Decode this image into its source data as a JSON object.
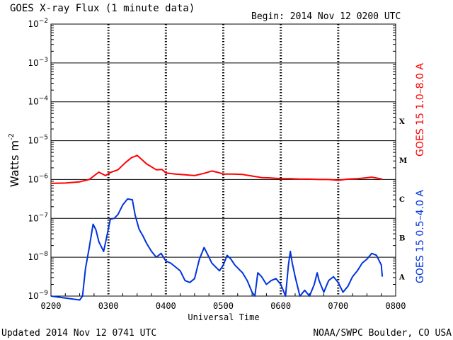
{
  "header": {
    "title": "GOES X-ray Flux (1 minute data)",
    "begin": "Begin: 2014 Nov 12 0200 UTC"
  },
  "footer": {
    "updated": "Updated 2014 Nov 12 0741 UTC",
    "credit": "NOAA/SWPC Boulder, CO USA"
  },
  "chart_data": {
    "type": "line",
    "title": "GOES X-ray Flux (1 minute data)",
    "xlabel": "Universal Time",
    "ylabel": "Watts m",
    "ylabel_sup": "-2",
    "xlim": [
      "0200",
      "0800"
    ],
    "ylim_exponent": [
      -9,
      -2
    ],
    "yscale": "log",
    "grid": true,
    "x_tick_labels": [
      "0200",
      "0300",
      "0400",
      "0500",
      "0600",
      "0700",
      "0800"
    ],
    "y_tick_exponents": [
      -9,
      -8,
      -7,
      -6,
      -5,
      -4,
      -3,
      -2
    ],
    "flare_classes": [
      {
        "label": "A",
        "exponent": -8
      },
      {
        "label": "B",
        "exponent": -7
      },
      {
        "label": "C",
        "exponent": -6
      },
      {
        "label": "M",
        "exponent": -5
      },
      {
        "label": "X",
        "exponent": -4
      }
    ],
    "series": [
      {
        "name": "GOES 15 1.0–8.0 A",
        "color": "#ff0000",
        "x": [
          "0200",
          "0215",
          "0230",
          "0240",
          "0250",
          "0257",
          "0302",
          "0310",
          "0318",
          "0324",
          "0330",
          "0340",
          "0350",
          "0356",
          "0400",
          "0410",
          "0420",
          "0430",
          "0440",
          "0448",
          "0455",
          "0500",
          "0510",
          "0520",
          "0530",
          "0540",
          "0550",
          "0600",
          "0610",
          "0620",
          "0630",
          "0640",
          "0650",
          "0700",
          "0710",
          "0720",
          "0735",
          "0746"
        ],
        "log10_flux": [
          -6.1,
          -6.09,
          -6.06,
          -6.0,
          -5.81,
          -5.9,
          -5.82,
          -5.75,
          -5.56,
          -5.44,
          -5.38,
          -5.6,
          -5.75,
          -5.74,
          -5.83,
          -5.86,
          -5.88,
          -5.9,
          -5.84,
          -5.78,
          -5.82,
          -5.86,
          -5.86,
          -5.87,
          -5.91,
          -5.95,
          -5.96,
          -5.98,
          -5.98,
          -5.99,
          -5.99,
          -6.0,
          -6.0,
          -6.02,
          -5.99,
          -5.98,
          -5.94,
          -5.99
        ]
      },
      {
        "name": "GOES 15 0.5–4.0 A",
        "color": "#0033dd",
        "x": [
          "0200",
          "0215",
          "0230",
          "0233",
          "0236",
          "0240",
          "0244",
          "0247",
          "0250",
          "0255",
          "0258",
          "0302",
          "0306",
          "0310",
          "0315",
          "0320",
          "0325",
          "0328",
          "0332",
          "0336",
          "0340",
          "0345",
          "0350",
          "0355",
          "0400",
          "0405",
          "0410",
          "0415",
          "0420",
          "0425",
          "0430",
          "0435",
          "0440",
          "0444",
          "0448",
          "0452",
          "0456",
          "0500",
          "0504",
          "0508",
          "0512",
          "0516",
          "0520",
          "0525",
          "0530",
          "0533",
          "0536",
          "0540",
          "0545",
          "0550",
          "0555",
          "0600",
          "0605",
          "0608",
          "0610",
          "0612",
          "0615",
          "0620",
          "0625",
          "0630",
          "0635",
          "0638",
          "0640",
          "0645",
          "0650",
          "0655",
          "0700",
          "0705",
          "0710",
          "0715",
          "0720",
          "0725",
          "0730",
          "0735",
          "0740",
          "0745",
          "0746"
        ],
        "log10_flux": [
          -9.0,
          -9.05,
          -9.1,
          -9.0,
          -8.3,
          -7.75,
          -7.15,
          -7.3,
          -7.6,
          -7.85,
          -7.5,
          -7.02,
          -7.0,
          -6.9,
          -6.65,
          -6.5,
          -6.52,
          -6.92,
          -7.28,
          -7.45,
          -7.65,
          -7.85,
          -8.0,
          -7.9,
          -8.1,
          -8.15,
          -8.25,
          -8.35,
          -8.6,
          -8.65,
          -8.55,
          -8.05,
          -7.75,
          -7.95,
          -8.15,
          -8.25,
          -8.35,
          -8.2,
          -7.95,
          -8.05,
          -8.2,
          -8.3,
          -8.4,
          -8.6,
          -8.9,
          -9.0,
          -8.4,
          -8.5,
          -8.7,
          -8.6,
          -8.55,
          -8.7,
          -9.0,
          -8.2,
          -7.85,
          -8.15,
          -8.5,
          -9.0,
          -8.85,
          -9.0,
          -8.7,
          -8.4,
          -8.6,
          -8.9,
          -8.6,
          -8.5,
          -8.65,
          -8.9,
          -8.75,
          -8.5,
          -8.35,
          -8.15,
          -8.05,
          -7.9,
          -7.95,
          -8.2,
          -8.5
        ]
      }
    ]
  }
}
